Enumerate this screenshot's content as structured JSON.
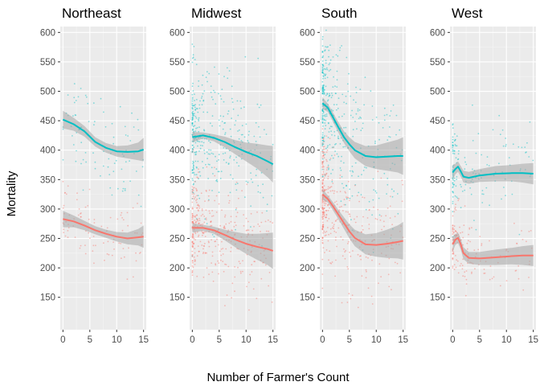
{
  "chart_data": {
    "type": "scatter",
    "xlabel": "Number of Farmer's Count",
    "ylabel": "Mortality",
    "xlim": [
      -0.5,
      15.5
    ],
    "ylim": [
      95,
      610
    ],
    "x_ticks": [
      0,
      5,
      10,
      15
    ],
    "y_ticks": [
      150,
      200,
      250,
      300,
      350,
      400,
      450,
      500,
      550,
      600
    ],
    "grid": true,
    "legend": "none",
    "colors": {
      "series_1": "#f8766d",
      "series_2": "#00bfc4",
      "panel_bg": "#ebebeb",
      "ribbon": "#a6a6a6"
    },
    "panels": [
      {
        "title": "Northeast",
        "smooth": [
          {
            "series": "series_2",
            "points": [
              [
                0,
                452
              ],
              [
                2,
                444
              ],
              [
                4,
                432
              ],
              [
                6,
                414
              ],
              [
                8,
                404
              ],
              [
                10,
                398
              ],
              [
                12,
                397
              ],
              [
                14,
                398
              ],
              [
                15,
                401
              ]
            ],
            "band_halfwidth": [
              15,
              11,
              9,
              8,
              8,
              9,
              11,
              15,
              20
            ]
          },
          {
            "series": "series_1",
            "points": [
              [
                0,
                283
              ],
              [
                2,
                279
              ],
              [
                4,
                272
              ],
              [
                6,
                264
              ],
              [
                8,
                258
              ],
              [
                10,
                253
              ],
              [
                12,
                250
              ],
              [
                14,
                252
              ],
              [
                15,
                253
              ]
            ],
            "band_halfwidth": [
              14,
              10,
              8,
              7,
              7,
              8,
              10,
              14,
              19
            ]
          }
        ],
        "scatter": [
          {
            "series": "series_2",
            "n": 90,
            "center": 420,
            "spread": 42,
            "xmax": 15,
            "xskew": 1.3
          },
          {
            "series": "series_1",
            "n": 90,
            "center": 268,
            "spread": 30,
            "xmax": 15,
            "xskew": 1.3
          }
        ]
      },
      {
        "title": "Midwest",
        "smooth": [
          {
            "series": "series_2",
            "points": [
              [
                0,
                422
              ],
              [
                2,
                425
              ],
              [
                4,
                421
              ],
              [
                6,
                414
              ],
              [
                8,
                405
              ],
              [
                10,
                397
              ],
              [
                12,
                390
              ],
              [
                14,
                381
              ],
              [
                15,
                376
              ]
            ],
            "band_halfwidth": [
              9,
              5,
              6,
              9,
              12,
              16,
              21,
              27,
              31
            ]
          },
          {
            "series": "series_1",
            "points": [
              [
                0,
                268
              ],
              [
                2,
                268
              ],
              [
                4,
                264
              ],
              [
                6,
                256
              ],
              [
                8,
                248
              ],
              [
                10,
                241
              ],
              [
                12,
                236
              ],
              [
                14,
                232
              ],
              [
                15,
                229
              ]
            ],
            "band_halfwidth": [
              8,
              5,
              6,
              9,
              13,
              17,
              22,
              27,
              31
            ]
          }
        ],
        "scatter": [
          {
            "series": "series_2",
            "n": 360,
            "center": 425,
            "spread": 58,
            "xmax": 15,
            "xskew": 2.6
          },
          {
            "series": "series_1",
            "n": 360,
            "center": 262,
            "spread": 42,
            "xmax": 15,
            "xskew": 2.6
          }
        ]
      },
      {
        "title": "South",
        "smooth": [
          {
            "series": "series_2",
            "points": [
              [
                0,
                480
              ],
              [
                1,
                472
              ],
              [
                2,
                455
              ],
              [
                3,
                438
              ],
              [
                4,
                422
              ],
              [
                5,
                410
              ],
              [
                6,
                400
              ],
              [
                8,
                390
              ],
              [
                10,
                388
              ],
              [
                12,
                389
              ],
              [
                14,
                390
              ],
              [
                15,
                390
              ]
            ],
            "band_halfwidth": [
              10,
              7,
              8,
              9,
              10,
              12,
              14,
              17,
              20,
              24,
              28,
              32
            ]
          },
          {
            "series": "series_1",
            "points": [
              [
                0,
                325
              ],
              [
                1,
                317
              ],
              [
                2,
                304
              ],
              [
                3,
                290
              ],
              [
                4,
                276
              ],
              [
                5,
                262
              ],
              [
                6,
                251
              ],
              [
                8,
                240
              ],
              [
                10,
                239
              ],
              [
                12,
                241
              ],
              [
                14,
                244
              ],
              [
                15,
                246
              ]
            ],
            "band_halfwidth": [
              9,
              6,
              7,
              8,
              10,
              12,
              14,
              17,
              20,
              24,
              28,
              32
            ]
          }
        ],
        "scatter": [
          {
            "series": "series_2",
            "n": 380,
            "center": 462,
            "spread": 62,
            "xmax": 15,
            "xskew": 3.2
          },
          {
            "series": "series_1",
            "n": 380,
            "center": 292,
            "spread": 48,
            "xmax": 15,
            "xskew": 3.2
          }
        ]
      },
      {
        "title": "West",
        "smooth": [
          {
            "series": "series_2",
            "points": [
              [
                0,
                362
              ],
              [
                0.5,
                368
              ],
              [
                1,
                372
              ],
              [
                1.5,
                364
              ],
              [
                2,
                355
              ],
              [
                3,
                353
              ],
              [
                5,
                357
              ],
              [
                8,
                360
              ],
              [
                11,
                361
              ],
              [
                13,
                361
              ],
              [
                15,
                360
              ]
            ],
            "band_halfwidth": [
              13,
              9,
              9,
              9,
              10,
              10,
              11,
              13,
              14,
              16,
              18
            ]
          },
          {
            "series": "series_1",
            "points": [
              [
                0,
                240
              ],
              [
                0.5,
                248
              ],
              [
                1,
                251
              ],
              [
                1.5,
                240
              ],
              [
                2,
                225
              ],
              [
                3,
                217
              ],
              [
                5,
                216
              ],
              [
                8,
                218
              ],
              [
                11,
                220
              ],
              [
                13,
                221
              ],
              [
                15,
                221
              ]
            ],
            "band_halfwidth": [
              13,
              9,
              9,
              9,
              10,
              10,
              11,
              13,
              14,
              16,
              18
            ]
          }
        ],
        "scatter": [
          {
            "series": "series_2",
            "n": 150,
            "center": 375,
            "spread": 45,
            "xmax": 15,
            "xskew": 2.8
          },
          {
            "series": "series_1",
            "n": 150,
            "center": 228,
            "spread": 33,
            "xmax": 15,
            "xskew": 2.8
          }
        ]
      }
    ]
  }
}
